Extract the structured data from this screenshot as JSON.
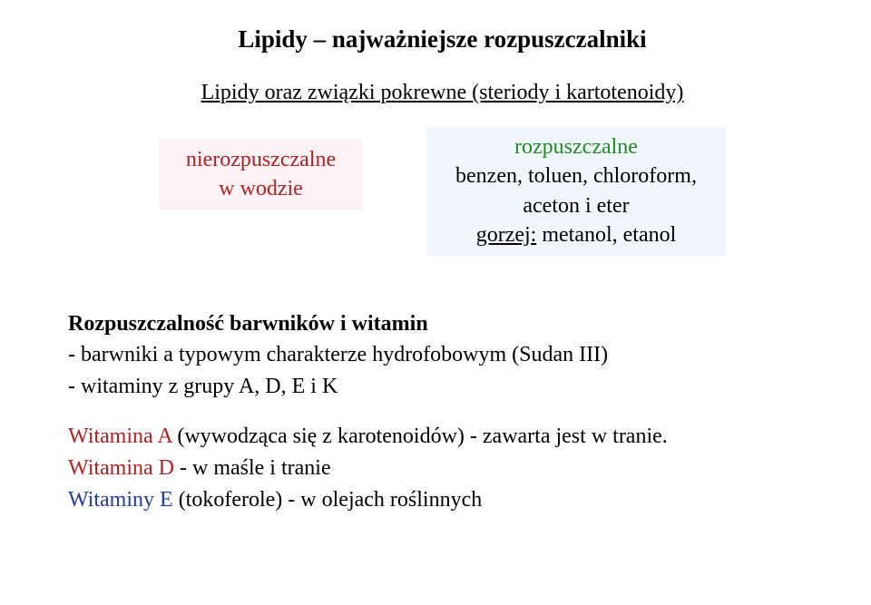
{
  "title": "Lipidy – najważniejsze rozpuszczalniki",
  "subtitle": "Lipidy oraz związki pokrewne (steriody i kartotenoidy)",
  "left_box": {
    "line1": "nierozpuszczalne",
    "line2": "w wodzie"
  },
  "right_box": {
    "line1": "rozpuszczalne",
    "line2": "benzen, toluen, chloroform,",
    "line3": "aceton i eter",
    "line4_label": "gorzej:",
    "line4_rest": " metanol, etanol"
  },
  "section": {
    "heading": "Rozpuszczalność barwników i witamin",
    "bullet1": "- barwniki a typowym charakterze hydrofobowym (Sudan III)",
    "bullet2": "- witaminy z grupy A, D, E i K",
    "witA_label": "Witamina A",
    "witA_rest": " (wywodząca się z karotenoidów) - zawarta jest w tranie.",
    "witD_label": "Witamina D",
    "witD_rest": " - w maśle i tranie",
    "witE_label": "Witaminy E",
    "witE_rest": " (tokoferole) - w olejach roślinnych"
  },
  "colors": {
    "red": "#b22222",
    "green": "#228b22",
    "blue": "#1e3ea0",
    "left_bg": "#fdf2f6",
    "right_bg": "#f0f7fc",
    "page_bg": "#ffffff",
    "text": "#000000"
  },
  "typography": {
    "family": "Times New Roman",
    "title_size_pt": 20,
    "body_size_pt": 18
  }
}
